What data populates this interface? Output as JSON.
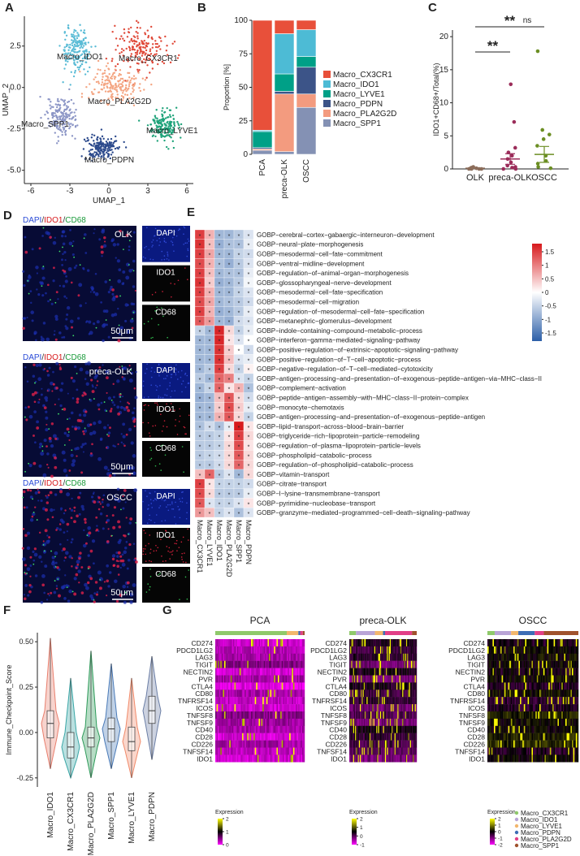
{
  "panel_labels": [
    "A",
    "B",
    "C",
    "D",
    "E",
    "F",
    "G"
  ],
  "umap": {
    "type": "scatter",
    "xlabel": "UMAP_1",
    "ylabel": "UMAP_2",
    "xlim": [
      -6.5,
      6.5
    ],
    "ylim": [
      -5.8,
      4.3
    ],
    "xticks": [
      -6,
      -3,
      0,
      3,
      6
    ],
    "yticks": [
      2.5,
      {
        "value": 0,
        "label": "0.0"
      },
      -2.5,
      {
        "value": -5,
        "label": "-5.0"
      }
    ],
    "clusters": [
      {
        "name": "Macro_CX3CR1",
        "color": "#e04a3a"
      },
      {
        "name": "Macro_IDO1",
        "color": "#5bbcd6"
      },
      {
        "name": "Macro_LYVE1",
        "color": "#1fa37a"
      },
      {
        "name": "Macro_PDPN",
        "color": "#2c4a8c"
      },
      {
        "name": "Macro_PLA2G2D",
        "color": "#f4a582"
      },
      {
        "name": "Macro_SPP1",
        "color": "#8c96c6"
      }
    ]
  },
  "proportion": {
    "type": "bar",
    "stacked": true,
    "ylabel": "Proportion [%]",
    "categories": [
      "PCA",
      "preca-OLK",
      "OSCC"
    ],
    "ylim": [
      0,
      100
    ],
    "yticks": [
      0,
      25,
      50,
      75,
      100
    ],
    "series": [
      {
        "name": "Macro_CX3CR1",
        "color": "#e8503a",
        "values": [
          82,
          10,
          7
        ]
      },
      {
        "name": "Macro_IDO1",
        "color": "#4dbbd5",
        "values": [
          1,
          30,
          20
        ]
      },
      {
        "name": "Macro_LYVE1",
        "color": "#00a087",
        "values": [
          12,
          13,
          8
        ]
      },
      {
        "name": "Macro_PDPN",
        "color": "#3c5488",
        "values": [
          1,
          2,
          20
        ]
      },
      {
        "name": "Macro_PLA2G2D",
        "color": "#f39b7f",
        "values": [
          1,
          43,
          10
        ]
      },
      {
        "name": "Macro_SPP1",
        "color": "#8491b4",
        "values": [
          3,
          2,
          35
        ]
      }
    ]
  },
  "ido1": {
    "type": "scatter",
    "ylabel": "IDO1+CD68+/Total(%)",
    "ylim": [
      0,
      21
    ],
    "yticks": [
      0,
      5,
      10,
      15,
      20
    ],
    "groups": [
      {
        "name": "OLK",
        "color": "#8c6d5a",
        "values": [
          0,
          0,
          0,
          0.1,
          0.2,
          0,
          0.1,
          0.3
        ],
        "mean": 0.1,
        "sem": 0.05
      },
      {
        "name": "preca-OLK",
        "color": "#9b2d5a",
        "values": [
          12.8,
          7.1,
          3.2,
          2.5,
          2,
          1.5,
          1,
          0.5,
          0.3,
          0.2,
          0,
          0
        ],
        "mean": 1.5,
        "sem": 0.8
      },
      {
        "name": "OSCC",
        "color": "#6b8e23",
        "values": [
          17.8,
          5.9,
          5.2,
          4.5,
          3.5,
          2,
          1.2,
          0.8,
          0.3,
          0.1
        ],
        "mean": 2.2,
        "sem": 1.2
      }
    ],
    "significance": [
      "**",
      "**",
      "ns"
    ]
  },
  "if_images": {
    "stain_label": [
      {
        "text": "DAPI",
        "color": "#2a4bd7"
      },
      {
        "text": "/",
        "color": "#333333"
      },
      {
        "text": "IDO1",
        "color": "#d7191c"
      },
      {
        "text": "/",
        "color": "#333333"
      },
      {
        "text": "CD68",
        "color": "#1a9a3a"
      }
    ],
    "samples": [
      "OLK",
      "preca-OLK",
      "OSCC"
    ],
    "channels": [
      "DAPI",
      "IDO1",
      "CD68"
    ],
    "scale_bar": "50μm"
  },
  "go_heatmap": {
    "type": "heatmap",
    "rows": [
      "GOBP−cerebral−cortex−gabaergic−interneuron−development",
      "GOBP−neural−plate−morphogenesis",
      "GOBP−mesodermal−cell−fate−commitment",
      "GOBP−ventral−midline−development",
      "GOBP−regulation−of−animal−organ−morphogenesis",
      "GOBP−glossopharyngeal−nerve−development",
      "GOBP−mesodermal−cell−fate−specification",
      "GOBP−mesodermal−cell−migration",
      "GOBP−regulation−of−mesodermal−cell−fate−specification",
      "GOBP−metanephric−glomerulus−development",
      "GOBP−indole−containing−compound−metabolic−process",
      "GOBP−interferon−gamma−mediated−signaling−pathway",
      "GOBP−positive−regulation−of−extrinsic−apoptotic−signaling−pathway",
      "GOBP−positive−regulation−of−T−cell−apoptotic−process",
      "GOBP−negative−regulation−of−T−cell−mediated−cytotoxicity",
      "GOBP−antigen−processing−and−presentation−of−exogenous−peptide−antigen−via−MHC−class−II",
      "GOBP−complement−activation",
      "GOBP−peptide−antigen−assembly−with−MHC−class−II−protein−complex",
      "GOBP−monocyte−chemotaxis",
      "GOBP−antigen−processing−and−presentation−of−exogenous−peptide−antigen",
      "GOBP−lipid−transport−across−blood−brain−barrier",
      "GOBP−triglyceride−rich−lipoprotein−particle−remodeling",
      "GOBP−regulation−of−plasma−lipoprotein−particle−levels",
      "GOBP−phospholipid−catabolic−process",
      "GOBP−regulation−of−phospholipid−catabolic−process",
      "GOBP−vitamin−transport",
      "GOBP−citrate−transport",
      "GOBP−l−lysine−transmembrane−transport",
      "GOBP−pyrimidine−nucleobase−transport",
      "GOBP−granzyme−mediated−programmed−cell−death−signaling−pathway"
    ],
    "columns": [
      "Macro_CX3CR1",
      "Macro_LYVE1",
      "Macro_IDO1",
      "Macro_PLA2G2D",
      "Macro_SPP1",
      "Macro_PDPN"
    ],
    "values": [
      [
        1.5,
        0.6,
        -0.8,
        -0.8,
        -0.6,
        -0.3
      ],
      [
        1.6,
        0.5,
        -0.9,
        -0.7,
        -0.7,
        -0.2
      ],
      [
        1.5,
        0.7,
        -0.8,
        -0.8,
        -0.5,
        -0.4
      ],
      [
        1.4,
        0.6,
        -0.7,
        -0.9,
        -0.6,
        -0.3
      ],
      [
        1.5,
        0.5,
        -0.8,
        -0.7,
        -0.7,
        -0.2
      ],
      [
        1.6,
        0.4,
        -0.9,
        -0.8,
        -0.6,
        -0.1
      ],
      [
        1.5,
        0.6,
        -0.8,
        -0.8,
        -0.5,
        -0.3
      ],
      [
        1.4,
        0.7,
        -0.8,
        -0.7,
        -0.6,
        -0.4
      ],
      [
        1.5,
        0.6,
        -0.9,
        -0.8,
        -0.6,
        -0.2
      ],
      [
        1.3,
        0.8,
        -0.8,
        -0.9,
        -0.4,
        -0.3
      ],
      [
        -0.5,
        -0.8,
        1.7,
        0.3,
        -0.5,
        -0.2
      ],
      [
        -0.8,
        -0.8,
        1.7,
        0.2,
        -0.3,
        0
      ],
      [
        -0.8,
        -0.8,
        1.6,
        0.4,
        0,
        -0.4
      ],
      [
        -0.8,
        -0.8,
        1.6,
        0.5,
        -0.3,
        -0.2
      ],
      [
        -0.8,
        -0.6,
        1.5,
        0.3,
        -0.5,
        0.1
      ],
      [
        -0.6,
        -0.8,
        1.2,
        1.0,
        -0.3,
        -0.5
      ],
      [
        -0.8,
        -0.5,
        1.2,
        0.2,
        0.6,
        -0.7
      ],
      [
        -0.9,
        -0.8,
        0.5,
        1.3,
        0.3,
        -0.4
      ],
      [
        -0.8,
        -0.8,
        0.4,
        1.4,
        0.4,
        -0.2
      ],
      [
        -0.8,
        -0.8,
        0.6,
        1.3,
        0.3,
        -0.5
      ],
      [
        -0.7,
        -0.4,
        -0.7,
        -0.2,
        1.8,
        0.2
      ],
      [
        -0.6,
        -0.6,
        -0.5,
        0.2,
        1.5,
        0.3
      ],
      [
        -0.6,
        -0.6,
        -0.5,
        0.3,
        1.4,
        0.2
      ],
      [
        -0.6,
        -0.5,
        -0.4,
        0.3,
        1.3,
        0.3
      ],
      [
        -0.6,
        -0.6,
        -0.4,
        0.3,
        1.2,
        0.3
      ],
      [
        0.5,
        1.2,
        -0.6,
        -0.3,
        -0.8,
        0.3
      ],
      [
        1.5,
        0.2,
        -0.5,
        -0.5,
        -0.5,
        -0.4
      ],
      [
        1.4,
        0.3,
        -0.6,
        -0.6,
        -0.6,
        -0.2
      ],
      [
        1.3,
        -0.3,
        -0.5,
        -0.5,
        -0.3,
        0.2
      ],
      [
        0.8,
        0.5,
        -0.5,
        -0.3,
        -0.7,
        -0.3
      ]
    ],
    "color_range": [
      -1.8,
      1.8
    ],
    "colorbar_ticks": [
      1.5,
      1,
      0.5,
      0,
      -0.5,
      -1,
      -1.5
    ],
    "cell_mark": "*"
  },
  "checkpoint": {
    "type": "violin",
    "ylabel": "Immune_Checkpoint_Score",
    "ylim": [
      -0.3,
      0.55
    ],
    "yticks": [
      -0.25,
      {
        "value": 0,
        "label": "0.00"
      },
      0.25,
      {
        "value": 0.5,
        "label": "0.50"
      }
    ],
    "categories": [
      "Macro_IDO1",
      "Macro_CX3CR1",
      "Macro_PLA2G2D",
      "Macro_SPP1",
      "Macro_LYVE1",
      "Macro_PDPN"
    ],
    "colors": [
      "#e8806f",
      "#3aa6a6",
      "#2e9a5a",
      "#4a7ab8",
      "#f08a6a",
      "#6c7fa6"
    ],
    "stats": [
      {
        "min": -0.2,
        "q1": -0.03,
        "median": 0.05,
        "q3": 0.12,
        "max": 0.52
      },
      {
        "min": -0.25,
        "q1": -0.14,
        "median": -0.08,
        "q3": 0,
        "max": 0.3
      },
      {
        "min": -0.25,
        "q1": -0.08,
        "median": -0.03,
        "q3": 0.03,
        "max": 0.45
      },
      {
        "min": -0.2,
        "q1": -0.05,
        "median": 0.02,
        "q3": 0.08,
        "max": 0.38
      },
      {
        "min": -0.25,
        "q1": -0.1,
        "median": -0.05,
        "q3": 0.03,
        "max": 0.3
      },
      {
        "min": -0.15,
        "q1": 0.05,
        "median": 0.12,
        "q3": 0.2,
        "max": 0.42
      }
    ]
  },
  "expression": {
    "type": "heatmap",
    "genes": [
      "CD274",
      "PDCD1LG2",
      "LAG3",
      "TIGIT",
      "NECTIN2",
      "PVR",
      "CTLA4",
      "CD80",
      "TNFRSF14",
      "ICOS",
      "TNFSF8",
      "TNFSF9",
      "CD40",
      "CD28",
      "CD226",
      "TNFSF14",
      "IDO1"
    ],
    "panels": [
      {
        "title": "PCA",
        "legend_ticks": [
          2,
          1,
          0
        ]
      },
      {
        "title": "preca-OLK",
        "legend_ticks": [
          2,
          1,
          0,
          -1
        ]
      },
      {
        "title": "OSCC",
        "legend_ticks": [
          2,
          1,
          0,
          -1,
          -2
        ]
      }
    ],
    "legend_title": "Expression",
    "clusters": [
      {
        "name": "Macro_CX3CR1",
        "color": "#8fc96b"
      },
      {
        "name": "Macro_IDO1",
        "color": "#b9a4d6"
      },
      {
        "name": "Macro_LYVE1",
        "color": "#f2b66d"
      },
      {
        "name": "Macro_PDPN",
        "color": "#3d6db5"
      },
      {
        "name": "Macro_PLA2G2D",
        "color": "#e23f87"
      },
      {
        "name": "Macro_SPP1",
        "color": "#a0522d"
      }
    ]
  }
}
